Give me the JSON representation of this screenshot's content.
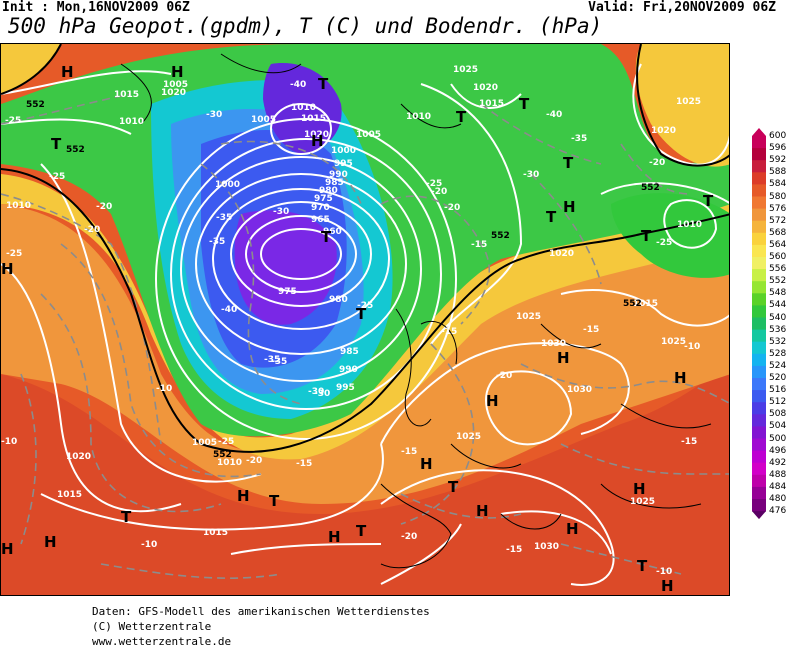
{
  "header": {
    "init": "Init : Mon,16NOV2009 06Z",
    "valid": "Valid: Fri,20NOV2009 06Z",
    "title": "500 hPa Geopot.(gpdm), T (C) und Bodendr. (hPa)"
  },
  "colorbar": {
    "labels": [
      "600",
      "596",
      "592",
      "588",
      "584",
      "580",
      "576",
      "572",
      "568",
      "564",
      "560",
      "556",
      "552",
      "548",
      "544",
      "540",
      "536",
      "532",
      "528",
      "524",
      "520",
      "516",
      "512",
      "508",
      "504",
      "500",
      "496",
      "492",
      "488",
      "484",
      "480",
      "476"
    ],
    "colors": [
      "#c8005a",
      "#b4003c",
      "#c81e3c",
      "#dc3c28",
      "#e65a28",
      "#f07832",
      "#f0963c",
      "#f5b43c",
      "#fad23c",
      "#fae650",
      "#f0f064",
      "#c8f046",
      "#96e632",
      "#5ad228",
      "#32c83c",
      "#1ebe64",
      "#14c8a0",
      "#14c8d2",
      "#14b4f0",
      "#2896fa",
      "#3c78fa",
      "#3c5af0",
      "#4b3ce6",
      "#6428dc",
      "#8214d2",
      "#a00ad2",
      "#be00d2",
      "#d200c8",
      "#be00aa",
      "#960096",
      "#78007d",
      "#5a0064"
    ]
  },
  "map": {
    "pressure_labels": [
      "1015",
      "1010",
      "1020",
      "1005",
      "1010",
      "1015",
      "1020",
      "1000",
      "995",
      "990",
      "985",
      "980",
      "975",
      "970",
      "965",
      "960",
      "1000",
      "995",
      "990",
      "985",
      "980",
      "975",
      "1005",
      "1010",
      "1015",
      "1020",
      "1025",
      "1030",
      "1030",
      "1025",
      "1015",
      "1020",
      "1025",
      "1010",
      "1025",
      "1025",
      "1015",
      "1010",
      "1005",
      "1020",
      "1015",
      "1025",
      "1020",
      "1010",
      "1005",
      "1030"
    ],
    "temperature_labels": [
      "-25",
      "-20",
      "-25",
      "-20",
      "-30",
      "-35",
      "-30",
      "-35",
      "-40",
      "-40",
      "-35",
      "-30",
      "-25",
      "-20",
      "-15",
      "-10",
      "-10",
      "-15",
      "-20",
      "-25",
      "-30",
      "-35",
      "-25",
      "-20",
      "-15",
      "-10",
      "-15",
      "-20",
      "-15",
      "-10",
      "-15",
      "-20",
      "-25",
      "-30",
      "-35",
      "-40",
      "-25",
      "-20",
      "-15",
      "-10"
    ],
    "geopotential_labels": [
      "552",
      "552",
      "552",
      "552",
      "552",
      "552"
    ],
    "high_symbol": "H",
    "low_symbol": "T"
  },
  "footer": {
    "line1": "Daten: GFS-Modell des amerikanischen Wetterdienstes",
    "line2": "(C) Wetterzentrale",
    "line3": "www.wetterzentrale.de"
  }
}
